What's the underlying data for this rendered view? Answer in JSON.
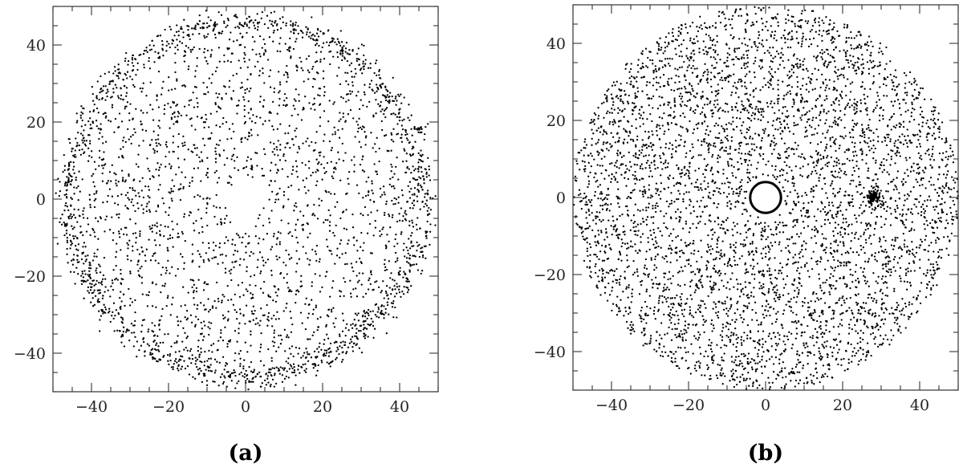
{
  "chart_data": [
    {
      "type": "scatter",
      "panel_label": "(a)",
      "title": "",
      "xlabel": "",
      "ylabel": "",
      "xlim": [
        -50,
        50
      ],
      "ylim": [
        -50,
        50
      ],
      "x_ticks": [
        -40,
        -20,
        0,
        20,
        40
      ],
      "y_ticks": [
        -40,
        -20,
        0,
        20,
        40
      ],
      "grid": false,
      "series": [
        {
          "color": "#000000",
          "components": [
            {
              "kind": "ring",
              "center": [
                0,
                0
              ],
              "radius": 46,
              "count": 1400
            },
            {
              "kind": "disk",
              "center": [
                0,
                0
              ],
              "radius_min": 5,
              "radius_max": 44,
              "count": 2000
            },
            {
              "kind": "cluster",
              "center": [
                45,
                18
              ],
              "radius": 1.5,
              "count": 20
            }
          ]
        }
      ]
    },
    {
      "type": "scatter",
      "panel_label": "(b)",
      "title": "",
      "xlabel": "",
      "ylabel": "",
      "xlim": [
        -50,
        50
      ],
      "ylim": [
        -50,
        50
      ],
      "x_ticks": [
        -40,
        -20,
        0,
        20,
        40
      ],
      "y_ticks": [
        -40,
        -20,
        0,
        20,
        40
      ],
      "grid": false,
      "central_object": {
        "center": [
          0,
          0
        ],
        "radius": 4
      },
      "series": [
        {
          "color": "#000000",
          "components": [
            {
              "kind": "disk",
              "center": [
                0,
                0
              ],
              "radius_min": 5,
              "radius_max": 50,
              "count": 5000
            },
            {
              "kind": "cluster",
              "center": [
                28,
                0
              ],
              "radius": 2.5,
              "count": 120
            }
          ]
        }
      ]
    }
  ]
}
